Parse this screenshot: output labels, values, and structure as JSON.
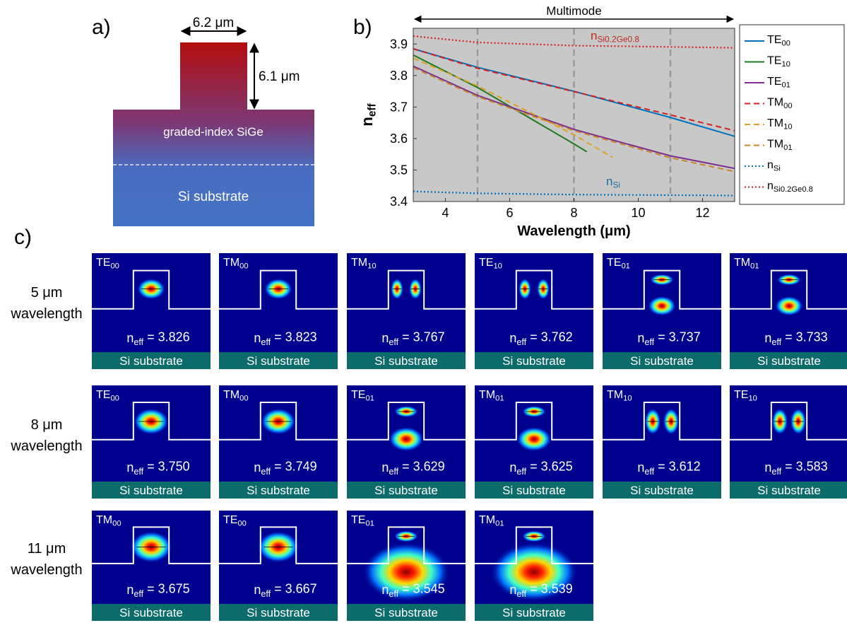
{
  "panel_a": {
    "label": "a)",
    "width_label": "6.2 μm",
    "height_label": "6.1 μm",
    "upper_layer": "graded-index SiGe",
    "substrate": "Si substrate"
  },
  "panel_b": {
    "label": "b)"
  },
  "chart_data": {
    "type": "line",
    "xlabel": "Wavelength (μm)",
    "ylabel": "neff",
    "range_label": "Multimode",
    "xlim": [
      3,
      13
    ],
    "ylim": [
      3.4,
      3.95
    ],
    "xticks": [
      4,
      6,
      8,
      10,
      12
    ],
    "yticks": [
      3.4,
      3.5,
      3.6,
      3.7,
      3.8,
      3.9
    ],
    "vlines": [
      5,
      8,
      11
    ],
    "background": "#c8c8c8",
    "annotations": [
      "nSi0.2Ge0.8",
      "nSi"
    ],
    "series": [
      {
        "name": "TE00",
        "color": "#0072bd",
        "dash": "solid",
        "x": [
          3,
          5,
          8,
          11,
          13
        ],
        "values": [
          3.885,
          3.826,
          3.75,
          3.667,
          3.607
        ]
      },
      {
        "name": "TE10",
        "color": "#1f7a1f",
        "dash": "solid",
        "x": [
          3,
          5,
          8,
          8.4
        ],
        "values": [
          3.865,
          3.762,
          3.583,
          3.558
        ]
      },
      {
        "name": "TE01",
        "color": "#7e2f8e",
        "dash": "solid",
        "x": [
          3,
          5,
          8,
          11,
          13
        ],
        "values": [
          3.83,
          3.737,
          3.629,
          3.545,
          3.505
        ]
      },
      {
        "name": "TM00",
        "color": "#d62020",
        "dash": "dashed",
        "x": [
          3,
          5,
          8,
          11,
          13
        ],
        "values": [
          3.885,
          3.823,
          3.749,
          3.675,
          3.625
        ]
      },
      {
        "name": "TM10",
        "color": "#e0a020",
        "dash": "dashed",
        "x": [
          3,
          5,
          8,
          9.2
        ],
        "values": [
          3.855,
          3.767,
          3.612,
          3.54
        ]
      },
      {
        "name": "TM01",
        "color": "#c8862a",
        "dash": "dashed",
        "x": [
          3,
          5,
          8,
          11,
          13
        ],
        "values": [
          3.825,
          3.733,
          3.625,
          3.539,
          3.495
        ]
      },
      {
        "name": "nSi",
        "color": "#0072bd",
        "dash": "dotted",
        "x": [
          3,
          5,
          8,
          13
        ],
        "values": [
          3.432,
          3.426,
          3.422,
          3.419
        ]
      },
      {
        "name": "nSi0.2Ge0.8",
        "color": "#d62020",
        "dash": "dotted",
        "x": [
          3,
          5,
          8,
          13
        ],
        "values": [
          3.925,
          3.905,
          3.895,
          3.888
        ]
      }
    ]
  },
  "panel_c": {
    "label": "c)",
    "rows": [
      {
        "wavelength": "5 μm",
        "caption": "wavelength",
        "tiles": [
          {
            "mode": "TE00",
            "neff": "neff = 3.826",
            "substrate": "Si substrate"
          },
          {
            "mode": "TM00",
            "neff": "neff = 3.823",
            "substrate": "Si substrate"
          },
          {
            "mode": "TM10",
            "neff": "neff = 3.767",
            "substrate": "Si substrate"
          },
          {
            "mode": "TE10",
            "neff": "neff = 3.762",
            "substrate": "Si substrate"
          },
          {
            "mode": "TE01",
            "neff": "neff = 3.737",
            "substrate": "Si substrate"
          },
          {
            "mode": "TM01",
            "neff": "neff = 3.733",
            "substrate": "Si substrate"
          }
        ]
      },
      {
        "wavelength": "8 μm",
        "caption": "wavelength",
        "tiles": [
          {
            "mode": "TE00",
            "neff": "neff = 3.750",
            "substrate": "Si substrate"
          },
          {
            "mode": "TM00",
            "neff": "neff = 3.749",
            "substrate": "Si substrate"
          },
          {
            "mode": "TE01",
            "neff": "neff = 3.629",
            "substrate": "Si substrate"
          },
          {
            "mode": "TM01",
            "neff": "neff = 3.625",
            "substrate": "Si substrate"
          },
          {
            "mode": "TM10",
            "neff": "neff = 3.612",
            "substrate": "Si substrate"
          },
          {
            "mode": "TE10",
            "neff": "neff = 3.583",
            "substrate": "Si substrate"
          }
        ]
      },
      {
        "wavelength": "11 μm",
        "caption": "wavelength",
        "tiles": [
          {
            "mode": "TM00",
            "neff": "neff = 3.675",
            "substrate": "Si substrate"
          },
          {
            "mode": "TE00",
            "neff": "neff = 3.667",
            "substrate": "Si substrate"
          },
          {
            "mode": "TE01",
            "neff": "neff = 3.545",
            "substrate": "Si substrate"
          },
          {
            "mode": "TM01",
            "neff": "neff = 3.539",
            "substrate": "Si substrate"
          }
        ]
      }
    ]
  }
}
